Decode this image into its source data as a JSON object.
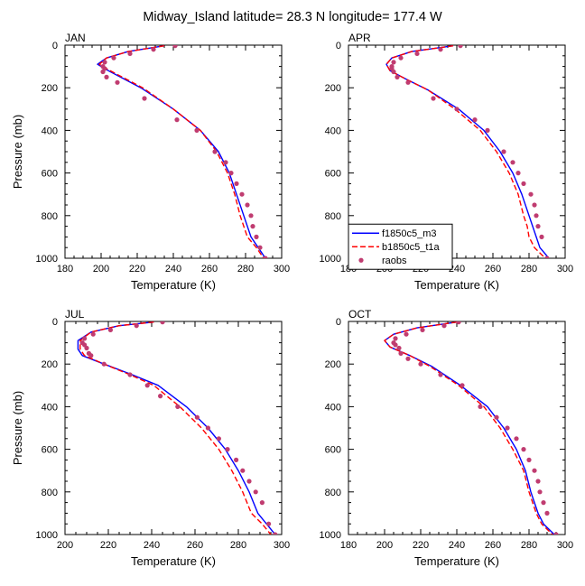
{
  "figure": {
    "title": "Midway_Island  latitude= 28.3 N longitude= 177.4 W"
  },
  "chart_data": [
    {
      "type": "line",
      "panel_label": "JAN",
      "xlabel": "Temperature (K)",
      "ylabel": "Pressure (mb)",
      "xlim": [
        180,
        300
      ],
      "ylim": [
        1000,
        0
      ],
      "xticks": [
        180,
        200,
        220,
        240,
        260,
        280,
        300
      ],
      "yticks": [
        0,
        200,
        400,
        600,
        800,
        1000
      ],
      "show_legend": false,
      "series": [
        {
          "name": "f1850c5_m3",
          "color": "#0000ff",
          "style": "solid",
          "marker": "none",
          "x": [
            235,
            215,
            203,
            198,
            204,
            222,
            240,
            255,
            265,
            271,
            275,
            279,
            283,
            287,
            291
          ],
          "y": [
            3,
            30,
            60,
            90,
            120,
            200,
            300,
            400,
            500,
            600,
            700,
            800,
            900,
            950,
            1000
          ]
        },
        {
          "name": "b1850c5_t1a",
          "color": "#ff0000",
          "style": "dashed",
          "marker": "none",
          "x": [
            235,
            215,
            203,
            199,
            205,
            223,
            240,
            255,
            264,
            270,
            274,
            277,
            281,
            286,
            290
          ],
          "y": [
            3,
            30,
            60,
            90,
            120,
            200,
            300,
            400,
            500,
            600,
            700,
            800,
            900,
            950,
            1000
          ]
        },
        {
          "name": "raobs",
          "color": "#c03c70",
          "style": "none",
          "marker": "dot",
          "x": [
            241,
            229,
            216,
            207,
            202,
            201,
            202,
            201,
            203,
            209,
            224,
            242,
            253,
            263,
            269,
            272,
            275,
            278,
            281,
            283,
            284,
            286,
            288,
            291
          ],
          "y": [
            3,
            20,
            40,
            60,
            80,
            100,
            110,
            125,
            150,
            175,
            250,
            350,
            400,
            500,
            550,
            600,
            650,
            700,
            750,
            800,
            850,
            900,
            950,
            1000
          ]
        }
      ]
    },
    {
      "type": "line",
      "panel_label": "APR",
      "xlabel": "Temperature (K)",
      "ylabel": "",
      "xlim": [
        180,
        300
      ],
      "ylim": [
        1000,
        0
      ],
      "xticks": [
        180,
        200,
        220,
        240,
        260,
        280,
        300
      ],
      "yticks": [
        0,
        200,
        400,
        600,
        800,
        1000
      ],
      "show_legend": true,
      "series": [
        {
          "name": "f1850c5_m3",
          "color": "#0000ff",
          "style": "solid",
          "marker": "none",
          "x": [
            238,
            215,
            204,
            201,
            203,
            212,
            224,
            241,
            255,
            264,
            271,
            276,
            280,
            282,
            284,
            286,
            291
          ],
          "y": [
            3,
            30,
            60,
            90,
            120,
            160,
            210,
            300,
            400,
            500,
            600,
            700,
            800,
            850,
            900,
            950,
            1000
          ]
        },
        {
          "name": "b1850c5_t1a",
          "color": "#ff0000",
          "style": "dashed",
          "marker": "none",
          "x": [
            238,
            215,
            204,
            201,
            203,
            212,
            224,
            239,
            253,
            262,
            269,
            274,
            277,
            279,
            280,
            283,
            289
          ],
          "y": [
            3,
            30,
            60,
            90,
            120,
            160,
            210,
            300,
            400,
            500,
            600,
            700,
            800,
            850,
            900,
            950,
            1000
          ]
        },
        {
          "name": "raobs",
          "color": "#c03c70",
          "style": "none",
          "marker": "dot",
          "x": [
            242,
            231,
            218,
            209,
            205,
            204,
            204,
            205,
            207,
            213,
            227,
            240,
            250,
            257,
            266,
            271,
            274,
            277,
            281,
            283,
            284,
            285,
            287,
            290
          ],
          "y": [
            3,
            20,
            40,
            60,
            80,
            100,
            110,
            125,
            150,
            175,
            250,
            300,
            350,
            400,
            500,
            550,
            600,
            650,
            700,
            750,
            800,
            850,
            900,
            1000
          ]
        }
      ]
    },
    {
      "type": "line",
      "panel_label": "JUL",
      "xlabel": "Temperature (K)",
      "ylabel": "Pressure (mb)",
      "xlim": [
        200,
        300
      ],
      "ylim": [
        1000,
        0
      ],
      "xticks": [
        200,
        220,
        240,
        260,
        280,
        300
      ],
      "yticks": [
        0,
        200,
        400,
        600,
        800,
        1000
      ],
      "show_legend": false,
      "series": [
        {
          "name": "f1850c5_m3",
          "color": "#0000ff",
          "style": "solid",
          "marker": "none",
          "x": [
            241,
            225,
            212,
            206,
            206,
            208,
            218,
            231,
            243,
            256,
            266,
            274,
            280,
            285,
            289,
            293,
            297
          ],
          "y": [
            3,
            20,
            50,
            90,
            130,
            160,
            200,
            250,
            300,
            400,
            500,
            600,
            700,
            800,
            900,
            950,
            1000
          ]
        },
        {
          "name": "b1850c5_t1a",
          "color": "#ff0000",
          "style": "dashed",
          "marker": "none",
          "x": [
            241,
            225,
            212,
            207,
            207,
            209,
            218,
            230,
            241,
            253,
            263,
            271,
            277,
            282,
            286,
            291,
            295
          ],
          "y": [
            3,
            20,
            50,
            90,
            130,
            160,
            200,
            250,
            300,
            400,
            500,
            600,
            700,
            800,
            900,
            950,
            1000
          ]
        },
        {
          "name": "raobs",
          "color": "#c03c70",
          "style": "none",
          "marker": "dot",
          "x": [
            245,
            233,
            221,
            213,
            209,
            208,
            209,
            210,
            211,
            212,
            218,
            230,
            238,
            244,
            252,
            261,
            266,
            271,
            275,
            279,
            282,
            285,
            288,
            291,
            294,
            297
          ],
          "y": [
            3,
            20,
            40,
            60,
            80,
            100,
            110,
            125,
            150,
            160,
            200,
            250,
            300,
            350,
            400,
            450,
            500,
            550,
            600,
            650,
            700,
            750,
            800,
            850,
            950,
            1000
          ]
        }
      ]
    },
    {
      "type": "line",
      "panel_label": "OCT",
      "xlabel": "Temperature (K)",
      "ylabel": "",
      "xlim": [
        180,
        300
      ],
      "ylim": [
        1000,
        0
      ],
      "xticks": [
        180,
        200,
        220,
        240,
        260,
        280,
        300
      ],
      "yticks": [
        0,
        200,
        400,
        600,
        800,
        1000
      ],
      "show_legend": false,
      "series": [
        {
          "name": "f1850c5_m3",
          "color": "#0000ff",
          "style": "solid",
          "marker": "none",
          "x": [
            240,
            218,
            205,
            200,
            203,
            214,
            226,
            242,
            257,
            266,
            273,
            278,
            281,
            283,
            285,
            288,
            294
          ],
          "y": [
            3,
            30,
            60,
            90,
            120,
            160,
            210,
            300,
            400,
            500,
            600,
            700,
            800,
            850,
            900,
            950,
            1000
          ]
        },
        {
          "name": "b1850c5_t1a",
          "color": "#ff0000",
          "style": "dashed",
          "marker": "none",
          "x": [
            240,
            218,
            205,
            200,
            203,
            214,
            225,
            241,
            255,
            264,
            271,
            277,
            280,
            282,
            284,
            287,
            293
          ],
          "y": [
            3,
            30,
            60,
            90,
            120,
            160,
            210,
            300,
            400,
            500,
            600,
            700,
            800,
            850,
            900,
            950,
            1000
          ]
        },
        {
          "name": "raobs",
          "color": "#c03c70",
          "style": "none",
          "marker": "dot",
          "x": [
            241,
            233,
            221,
            212,
            206,
            205,
            206,
            208,
            209,
            213,
            220,
            231,
            243,
            253,
            262,
            268,
            273,
            277,
            280,
            283,
            285,
            286,
            288,
            290,
            295
          ],
          "y": [
            3,
            20,
            40,
            60,
            80,
            100,
            110,
            125,
            150,
            175,
            200,
            250,
            300,
            400,
            450,
            500,
            550,
            600,
            650,
            700,
            750,
            800,
            850,
            900,
            1000
          ]
        }
      ]
    }
  ]
}
